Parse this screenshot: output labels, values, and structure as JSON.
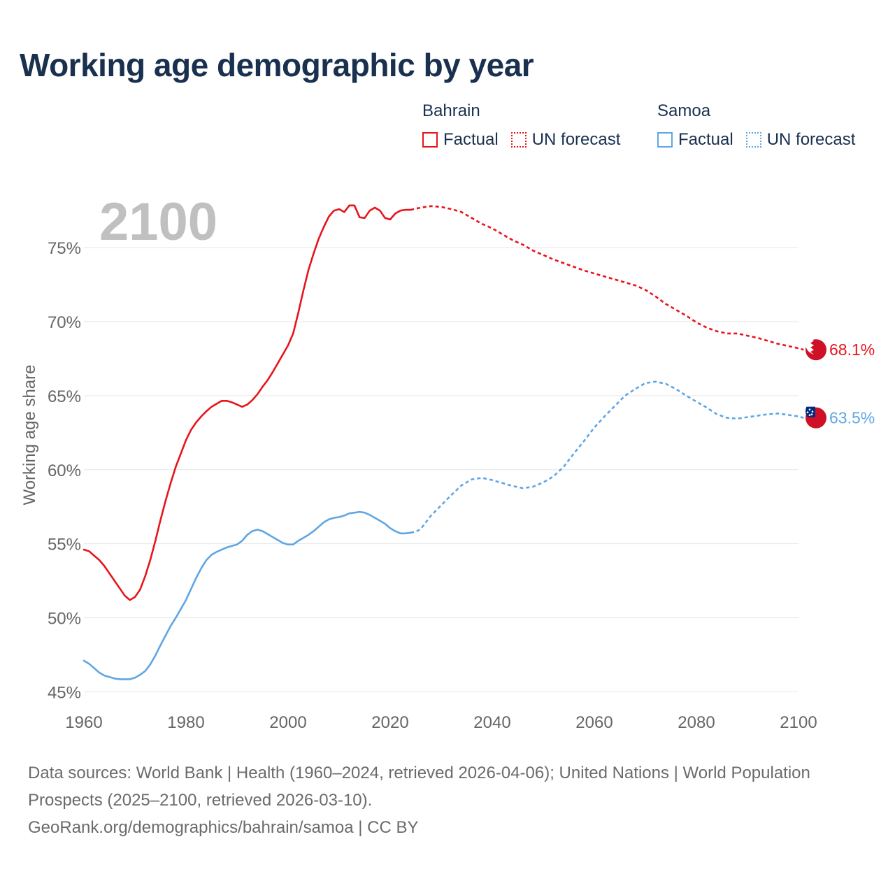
{
  "title": "Working age demographic by year",
  "legend": {
    "groups": [
      {
        "name": "Bahrain",
        "color": "#e8141c",
        "factual": "Factual",
        "forecast": "UN forecast"
      },
      {
        "name": "Samoa",
        "color": "#5fa6e3",
        "factual": "Factual",
        "forecast": "UN forecast"
      }
    ]
  },
  "footer": {
    "sources": "Data sources: World Bank | Health (1960–2024, retrieved 2026-04-06); United Nations | World Population Prospects (2025–2100, retrieved 2026-03-10).",
    "credit": "GeoRank.org/demographics/bahrain/samoa | CC BY"
  },
  "chart_data": {
    "type": "line",
    "title": "Working age demographic by year",
    "year_label": "2100",
    "xlabel": "",
    "ylabel": "Working age share",
    "xlim": [
      1960,
      2100
    ],
    "ylim": [
      44.5,
      78.5
    ],
    "xticks": [
      1960,
      1980,
      2000,
      2020,
      2040,
      2060,
      2080,
      2100
    ],
    "xtick_labels": [
      "1960",
      "1980",
      "2000",
      "2020",
      "2040",
      "2060",
      "2080",
      "2100"
    ],
    "yticks": [
      45,
      50,
      55,
      60,
      65,
      70,
      75
    ],
    "ytick_labels": [
      "45%",
      "50%",
      "55%",
      "60%",
      "65%",
      "70%",
      "75%"
    ],
    "grid": true,
    "series": [
      {
        "name": "Bahrain",
        "color": "#e8141c",
        "end_label": "68.1%",
        "flag": "bahrain-flag-icon",
        "factual": [
          [
            1960,
            54.6
          ],
          [
            1961,
            54.5
          ],
          [
            1962,
            54.2
          ],
          [
            1963,
            53.9
          ],
          [
            1964,
            53.5
          ],
          [
            1965,
            53.0
          ],
          [
            1966,
            52.5
          ],
          [
            1967,
            52.0
          ],
          [
            1968,
            51.5
          ],
          [
            1969,
            51.2
          ],
          [
            1970,
            51.4
          ],
          [
            1971,
            51.9
          ],
          [
            1972,
            52.8
          ],
          [
            1973,
            53.9
          ],
          [
            1974,
            55.2
          ],
          [
            1975,
            56.6
          ],
          [
            1976,
            57.9
          ],
          [
            1977,
            59.1
          ],
          [
            1978,
            60.2
          ],
          [
            1979,
            61.1
          ],
          [
            1980,
            62.0
          ],
          [
            1981,
            62.7
          ],
          [
            1982,
            63.2
          ],
          [
            1983,
            63.6
          ],
          [
            1984,
            63.95
          ],
          [
            1985,
            64.25
          ],
          [
            1986,
            64.45
          ],
          [
            1987,
            64.65
          ],
          [
            1988,
            64.65
          ],
          [
            1989,
            64.55
          ],
          [
            1990,
            64.4
          ],
          [
            1991,
            64.25
          ],
          [
            1992,
            64.4
          ],
          [
            1993,
            64.7
          ],
          [
            1994,
            65.1
          ],
          [
            1995,
            65.6
          ],
          [
            1996,
            66.05
          ],
          [
            1997,
            66.6
          ],
          [
            1998,
            67.2
          ],
          [
            1999,
            67.8
          ],
          [
            2000,
            68.4
          ],
          [
            2001,
            69.2
          ],
          [
            2002,
            70.6
          ],
          [
            2003,
            72.1
          ],
          [
            2004,
            73.5
          ],
          [
            2005,
            74.6
          ],
          [
            2006,
            75.6
          ],
          [
            2007,
            76.4
          ],
          [
            2008,
            77.1
          ],
          [
            2009,
            77.5
          ],
          [
            2010,
            77.6
          ],
          [
            2011,
            77.4
          ],
          [
            2012,
            77.85
          ],
          [
            2013,
            77.85
          ],
          [
            2014,
            77.05
          ],
          [
            2015,
            77.0
          ],
          [
            2016,
            77.5
          ],
          [
            2017,
            77.7
          ],
          [
            2018,
            77.5
          ],
          [
            2019,
            77.0
          ],
          [
            2020,
            76.9
          ],
          [
            2021,
            77.3
          ],
          [
            2022,
            77.5
          ],
          [
            2023,
            77.55
          ],
          [
            2024,
            77.55
          ]
        ],
        "forecast": [
          [
            2024,
            77.55
          ],
          [
            2026,
            77.7
          ],
          [
            2028,
            77.8
          ],
          [
            2030,
            77.75
          ],
          [
            2032,
            77.6
          ],
          [
            2034,
            77.4
          ],
          [
            2036,
            77.0
          ],
          [
            2038,
            76.6
          ],
          [
            2040,
            76.3
          ],
          [
            2042,
            75.9
          ],
          [
            2044,
            75.5
          ],
          [
            2046,
            75.2
          ],
          [
            2048,
            74.8
          ],
          [
            2050,
            74.5
          ],
          [
            2052,
            74.2
          ],
          [
            2054,
            73.95
          ],
          [
            2056,
            73.7
          ],
          [
            2058,
            73.45
          ],
          [
            2060,
            73.25
          ],
          [
            2062,
            73.05
          ],
          [
            2064,
            72.85
          ],
          [
            2066,
            72.65
          ],
          [
            2068,
            72.45
          ],
          [
            2070,
            72.15
          ],
          [
            2072,
            71.7
          ],
          [
            2074,
            71.2
          ],
          [
            2076,
            70.8
          ],
          [
            2078,
            70.4
          ],
          [
            2080,
            69.95
          ],
          [
            2082,
            69.6
          ],
          [
            2084,
            69.35
          ],
          [
            2086,
            69.2
          ],
          [
            2088,
            69.2
          ],
          [
            2090,
            69.05
          ],
          [
            2092,
            68.9
          ],
          [
            2094,
            68.7
          ],
          [
            2096,
            68.5
          ],
          [
            2098,
            68.35
          ],
          [
            2100,
            68.2
          ],
          [
            2101,
            68.1
          ]
        ]
      },
      {
        "name": "Samoa",
        "color": "#5fa6e3",
        "end_label": "63.5%",
        "flag": "samoa-flag-icon",
        "factual": [
          [
            1960,
            47.1
          ],
          [
            1961,
            46.9
          ],
          [
            1962,
            46.6
          ],
          [
            1963,
            46.3
          ],
          [
            1964,
            46.1
          ],
          [
            1965,
            46.0
          ],
          [
            1966,
            45.9
          ],
          [
            1967,
            45.85
          ],
          [
            1968,
            45.85
          ],
          [
            1969,
            45.85
          ],
          [
            1970,
            45.95
          ],
          [
            1971,
            46.15
          ],
          [
            1972,
            46.4
          ],
          [
            1973,
            46.85
          ],
          [
            1974,
            47.45
          ],
          [
            1975,
            48.15
          ],
          [
            1976,
            48.8
          ],
          [
            1977,
            49.45
          ],
          [
            1978,
            50.0
          ],
          [
            1979,
            50.6
          ],
          [
            1980,
            51.2
          ],
          [
            1981,
            51.95
          ],
          [
            1982,
            52.7
          ],
          [
            1983,
            53.35
          ],
          [
            1984,
            53.9
          ],
          [
            1985,
            54.25
          ],
          [
            1986,
            54.45
          ],
          [
            1987,
            54.6
          ],
          [
            1988,
            54.75
          ],
          [
            1989,
            54.85
          ],
          [
            1990,
            54.95
          ],
          [
            1991,
            55.2
          ],
          [
            1992,
            55.6
          ],
          [
            1993,
            55.85
          ],
          [
            1994,
            55.95
          ],
          [
            1995,
            55.85
          ],
          [
            1996,
            55.65
          ],
          [
            1997,
            55.45
          ],
          [
            1998,
            55.25
          ],
          [
            1999,
            55.05
          ],
          [
            2000,
            54.95
          ],
          [
            2001,
            54.95
          ],
          [
            2002,
            55.2
          ],
          [
            2003,
            55.4
          ],
          [
            2004,
            55.6
          ],
          [
            2005,
            55.85
          ],
          [
            2006,
            56.15
          ],
          [
            2007,
            56.45
          ],
          [
            2008,
            56.65
          ],
          [
            2009,
            56.75
          ],
          [
            2010,
            56.8
          ],
          [
            2011,
            56.9
          ],
          [
            2012,
            57.05
          ],
          [
            2013,
            57.1
          ],
          [
            2014,
            57.15
          ],
          [
            2015,
            57.1
          ],
          [
            2016,
            56.95
          ],
          [
            2017,
            56.75
          ],
          [
            2018,
            56.55
          ],
          [
            2019,
            56.35
          ],
          [
            2020,
            56.05
          ],
          [
            2021,
            55.85
          ],
          [
            2022,
            55.7
          ],
          [
            2023,
            55.7
          ],
          [
            2024,
            55.75
          ]
        ],
        "forecast": [
          [
            2024,
            55.75
          ],
          [
            2025,
            55.8
          ],
          [
            2026,
            56.0
          ],
          [
            2027,
            56.45
          ],
          [
            2028,
            56.9
          ],
          [
            2030,
            57.6
          ],
          [
            2032,
            58.3
          ],
          [
            2034,
            58.95
          ],
          [
            2036,
            59.35
          ],
          [
            2038,
            59.45
          ],
          [
            2040,
            59.3
          ],
          [
            2042,
            59.1
          ],
          [
            2044,
            58.9
          ],
          [
            2046,
            58.75
          ],
          [
            2048,
            58.85
          ],
          [
            2050,
            59.15
          ],
          [
            2052,
            59.55
          ],
          [
            2054,
            60.2
          ],
          [
            2056,
            61.1
          ],
          [
            2058,
            61.95
          ],
          [
            2060,
            62.85
          ],
          [
            2062,
            63.6
          ],
          [
            2064,
            64.3
          ],
          [
            2066,
            65.0
          ],
          [
            2068,
            65.45
          ],
          [
            2070,
            65.85
          ],
          [
            2072,
            65.95
          ],
          [
            2074,
            65.8
          ],
          [
            2076,
            65.45
          ],
          [
            2078,
            65.0
          ],
          [
            2080,
            64.6
          ],
          [
            2082,
            64.2
          ],
          [
            2084,
            63.75
          ],
          [
            2086,
            63.5
          ],
          [
            2088,
            63.45
          ],
          [
            2090,
            63.55
          ],
          [
            2092,
            63.65
          ],
          [
            2094,
            63.75
          ],
          [
            2096,
            63.8
          ],
          [
            2098,
            63.7
          ],
          [
            2100,
            63.6
          ],
          [
            2101,
            63.5
          ]
        ]
      }
    ]
  }
}
